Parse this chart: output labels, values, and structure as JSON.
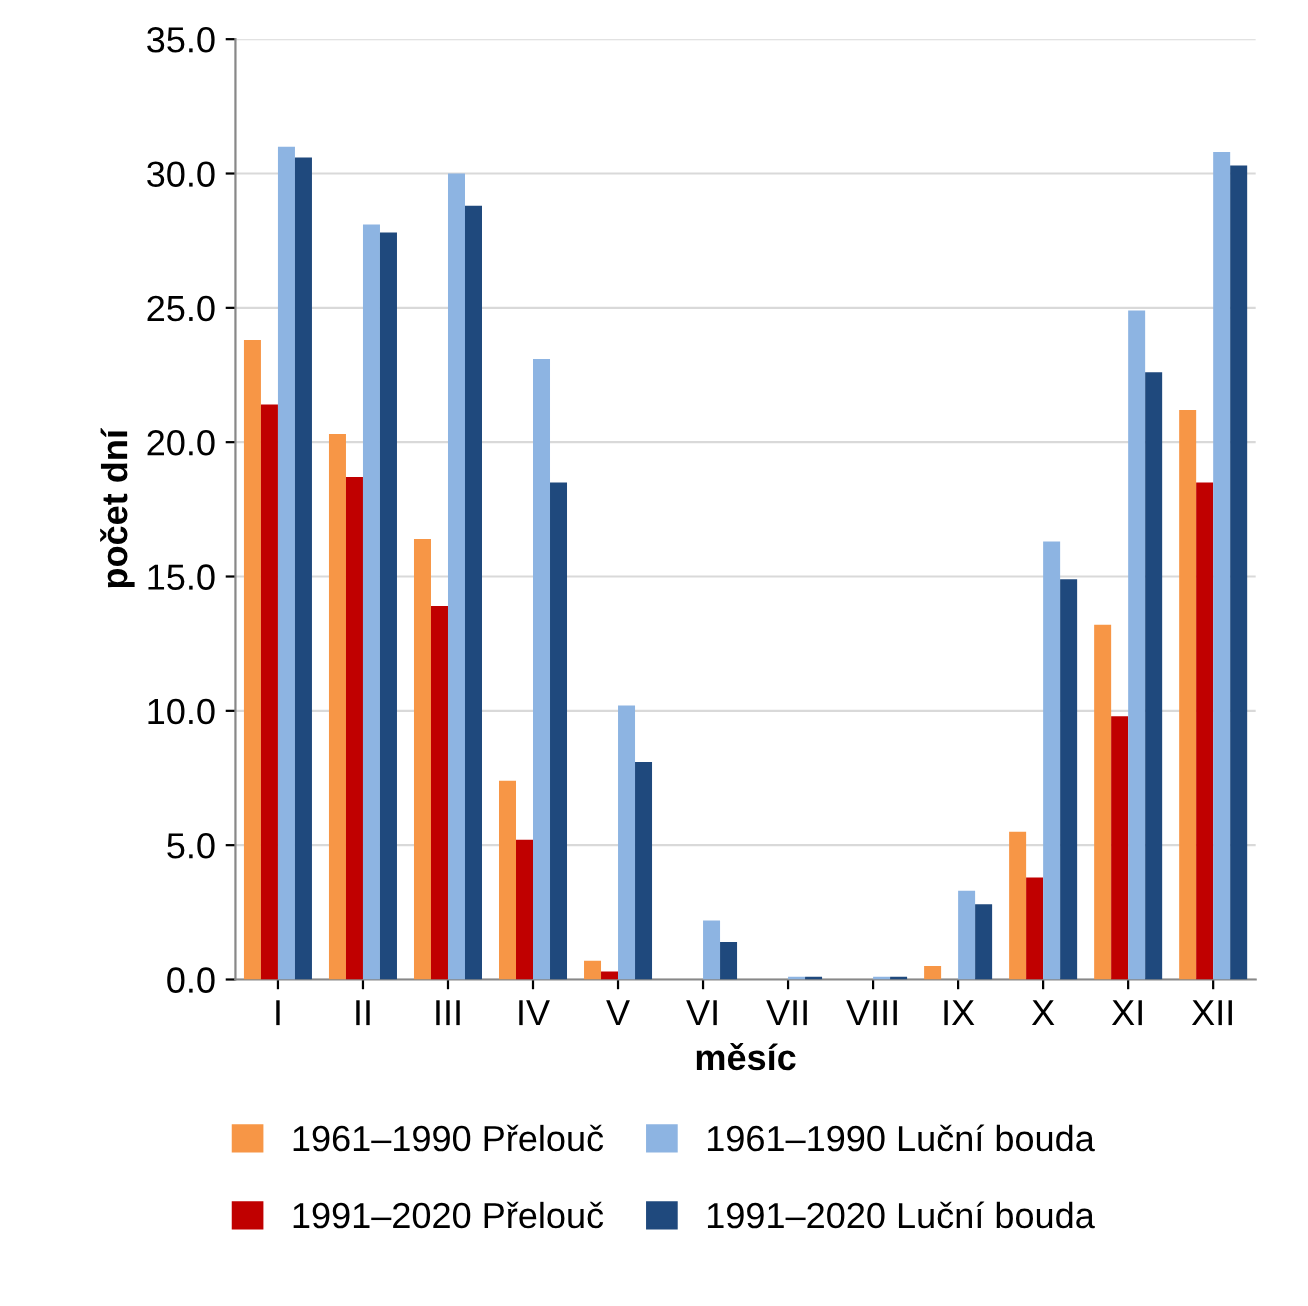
{
  "chart_data": {
    "type": "bar",
    "xlabel": "měsíc",
    "ylabel": "počet dní",
    "categories": [
      "I",
      "II",
      "III",
      "IV",
      "V",
      "VI",
      "VII",
      "VIII",
      "IX",
      "X",
      "XI",
      "XII"
    ],
    "series": [
      {
        "name": "1961–1990 Přelouč",
        "color": "#f79646",
        "values": [
          23.8,
          20.3,
          16.4,
          7.4,
          0.7,
          0.0,
          0.0,
          0.0,
          0.5,
          5.5,
          13.2,
          21.2
        ]
      },
      {
        "name": "1991–2020 Přelouč",
        "color": "#c00000",
        "values": [
          21.4,
          18.7,
          13.9,
          5.2,
          0.3,
          0.0,
          0.0,
          0.0,
          0.0,
          3.8,
          9.8,
          18.5
        ]
      },
      {
        "name": "1961–1990 Luční bouda",
        "color": "#8db4e2",
        "values": [
          31.0,
          28.1,
          30.0,
          23.1,
          10.2,
          2.2,
          0.1,
          0.1,
          3.3,
          16.3,
          24.9,
          30.8
        ]
      },
      {
        "name": "1991–2020 Luční bouda",
        "color": "#1f497d",
        "values": [
          30.6,
          27.8,
          28.8,
          18.5,
          8.1,
          1.4,
          0.1,
          0.1,
          2.8,
          14.9,
          22.6,
          30.3
        ]
      }
    ],
    "ylim": [
      0,
      35
    ],
    "yticks": [
      {
        "value": 0,
        "label": "0.0"
      },
      {
        "value": 5,
        "label": "5.0"
      },
      {
        "value": 10,
        "label": "10.0"
      },
      {
        "value": 15,
        "label": "15.0"
      },
      {
        "value": 20,
        "label": "20.0"
      },
      {
        "value": 25,
        "label": "25.0"
      },
      {
        "value": 30,
        "label": "30.0"
      },
      {
        "value": 35,
        "label": "35.0"
      }
    ],
    "grid": "y",
    "legend": "bottom"
  }
}
